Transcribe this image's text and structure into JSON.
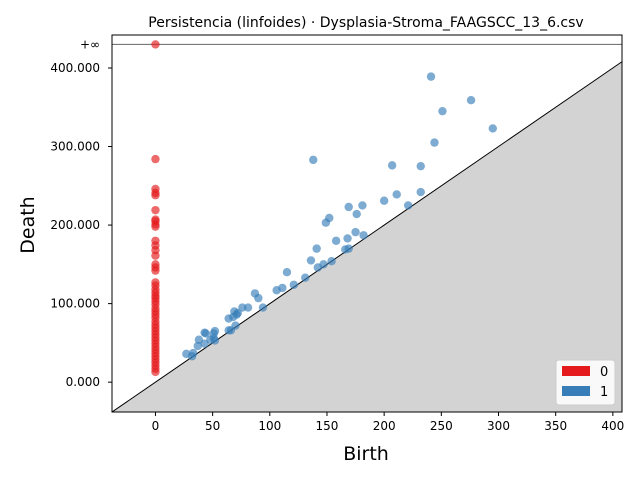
{
  "chart_data": {
    "type": "scatter",
    "title": "Persistencia (linfoides) · Dysplasia-Stroma_FAAGSCC_13_6.csv",
    "xlabel": "Birth",
    "ylabel": "Death",
    "xlim": [
      -38,
      408
    ],
    "ylim": [
      -38,
      442
    ],
    "x_ticks": [
      0,
      50,
      100,
      150,
      200,
      250,
      300,
      350,
      400
    ],
    "y_ticks": [
      0,
      100,
      200,
      300,
      400
    ],
    "y_tick_labels": [
      "0.000",
      "100.000",
      "200.000",
      "300.000",
      "400.000"
    ],
    "infinity_value": 430,
    "infinity_label": "+∞",
    "legend": [
      {
        "label": "0",
        "color": "#e41a1c"
      },
      {
        "label": "1",
        "color": "#377eb8"
      }
    ],
    "legend_position": "bottom-right",
    "diagonal": true,
    "series": [
      {
        "name": "0",
        "color": "#e41a1c",
        "points": [
          [
            0,
            430
          ],
          [
            0,
            284
          ],
          [
            0,
            246
          ],
          [
            0,
            241
          ],
          [
            0,
            238
          ],
          [
            0,
            219
          ],
          [
            0,
            207
          ],
          [
            0,
            205
          ],
          [
            0,
            201
          ],
          [
            0,
            198
          ],
          [
            0,
            180
          ],
          [
            0,
            174
          ],
          [
            0,
            168
          ],
          [
            0,
            161
          ],
          [
            0,
            150
          ],
          [
            0,
            146
          ],
          [
            0,
            142
          ],
          [
            0,
            127
          ],
          [
            0,
            123
          ],
          [
            0,
            118
          ],
          [
            0,
            114
          ],
          [
            0,
            110
          ],
          [
            0,
            107
          ],
          [
            0,
            103
          ],
          [
            0,
            99
          ],
          [
            0,
            94
          ],
          [
            0,
            90
          ],
          [
            0,
            86
          ],
          [
            0,
            82
          ],
          [
            0,
            77
          ],
          [
            0,
            73
          ],
          [
            0,
            69
          ],
          [
            0,
            65
          ],
          [
            0,
            61
          ],
          [
            0,
            57
          ],
          [
            0,
            53
          ],
          [
            0,
            49
          ],
          [
            0,
            45
          ],
          [
            0,
            41
          ],
          [
            0,
            37
          ],
          [
            0,
            33
          ],
          [
            0,
            29
          ],
          [
            0,
            25
          ],
          [
            0,
            21
          ],
          [
            0,
            17
          ],
          [
            0,
            13
          ]
        ]
      },
      {
        "name": "1",
        "color": "#377eb8",
        "points": [
          [
            27,
            36
          ],
          [
            32,
            33
          ],
          [
            33,
            37
          ],
          [
            37,
            46
          ],
          [
            38,
            54
          ],
          [
            43,
            49
          ],
          [
            43,
            63
          ],
          [
            44,
            62
          ],
          [
            48,
            54
          ],
          [
            51,
            56
          ],
          [
            51,
            62
          ],
          [
            52,
            65
          ],
          [
            52,
            53
          ],
          [
            64,
            66
          ],
          [
            64,
            81
          ],
          [
            66,
            66
          ],
          [
            68,
            83
          ],
          [
            69,
            90
          ],
          [
            70,
            72
          ],
          [
            71,
            86
          ],
          [
            72,
            88
          ],
          [
            76,
            95
          ],
          [
            81,
            95
          ],
          [
            87,
            113
          ],
          [
            90,
            107
          ],
          [
            94,
            95
          ],
          [
            106,
            117
          ],
          [
            111,
            120
          ],
          [
            115,
            140
          ],
          [
            121,
            124
          ],
          [
            131,
            133
          ],
          [
            136,
            155
          ],
          [
            138,
            283
          ],
          [
            141,
            170
          ],
          [
            142,
            146
          ],
          [
            147,
            150
          ],
          [
            149,
            203
          ],
          [
            152,
            209
          ],
          [
            154,
            154
          ],
          [
            158,
            180
          ],
          [
            166,
            169
          ],
          [
            168,
            183
          ],
          [
            169,
            170
          ],
          [
            169,
            223
          ],
          [
            175,
            191
          ],
          [
            176,
            214
          ],
          [
            181,
            225
          ],
          [
            182,
            187
          ],
          [
            200,
            231
          ],
          [
            207,
            276
          ],
          [
            211,
            239
          ],
          [
            221,
            225
          ],
          [
            232,
            275
          ],
          [
            232,
            242
          ],
          [
            241,
            389
          ],
          [
            244,
            305
          ],
          [
            251,
            345
          ],
          [
            276,
            359
          ],
          [
            295,
            323
          ]
        ]
      }
    ]
  }
}
